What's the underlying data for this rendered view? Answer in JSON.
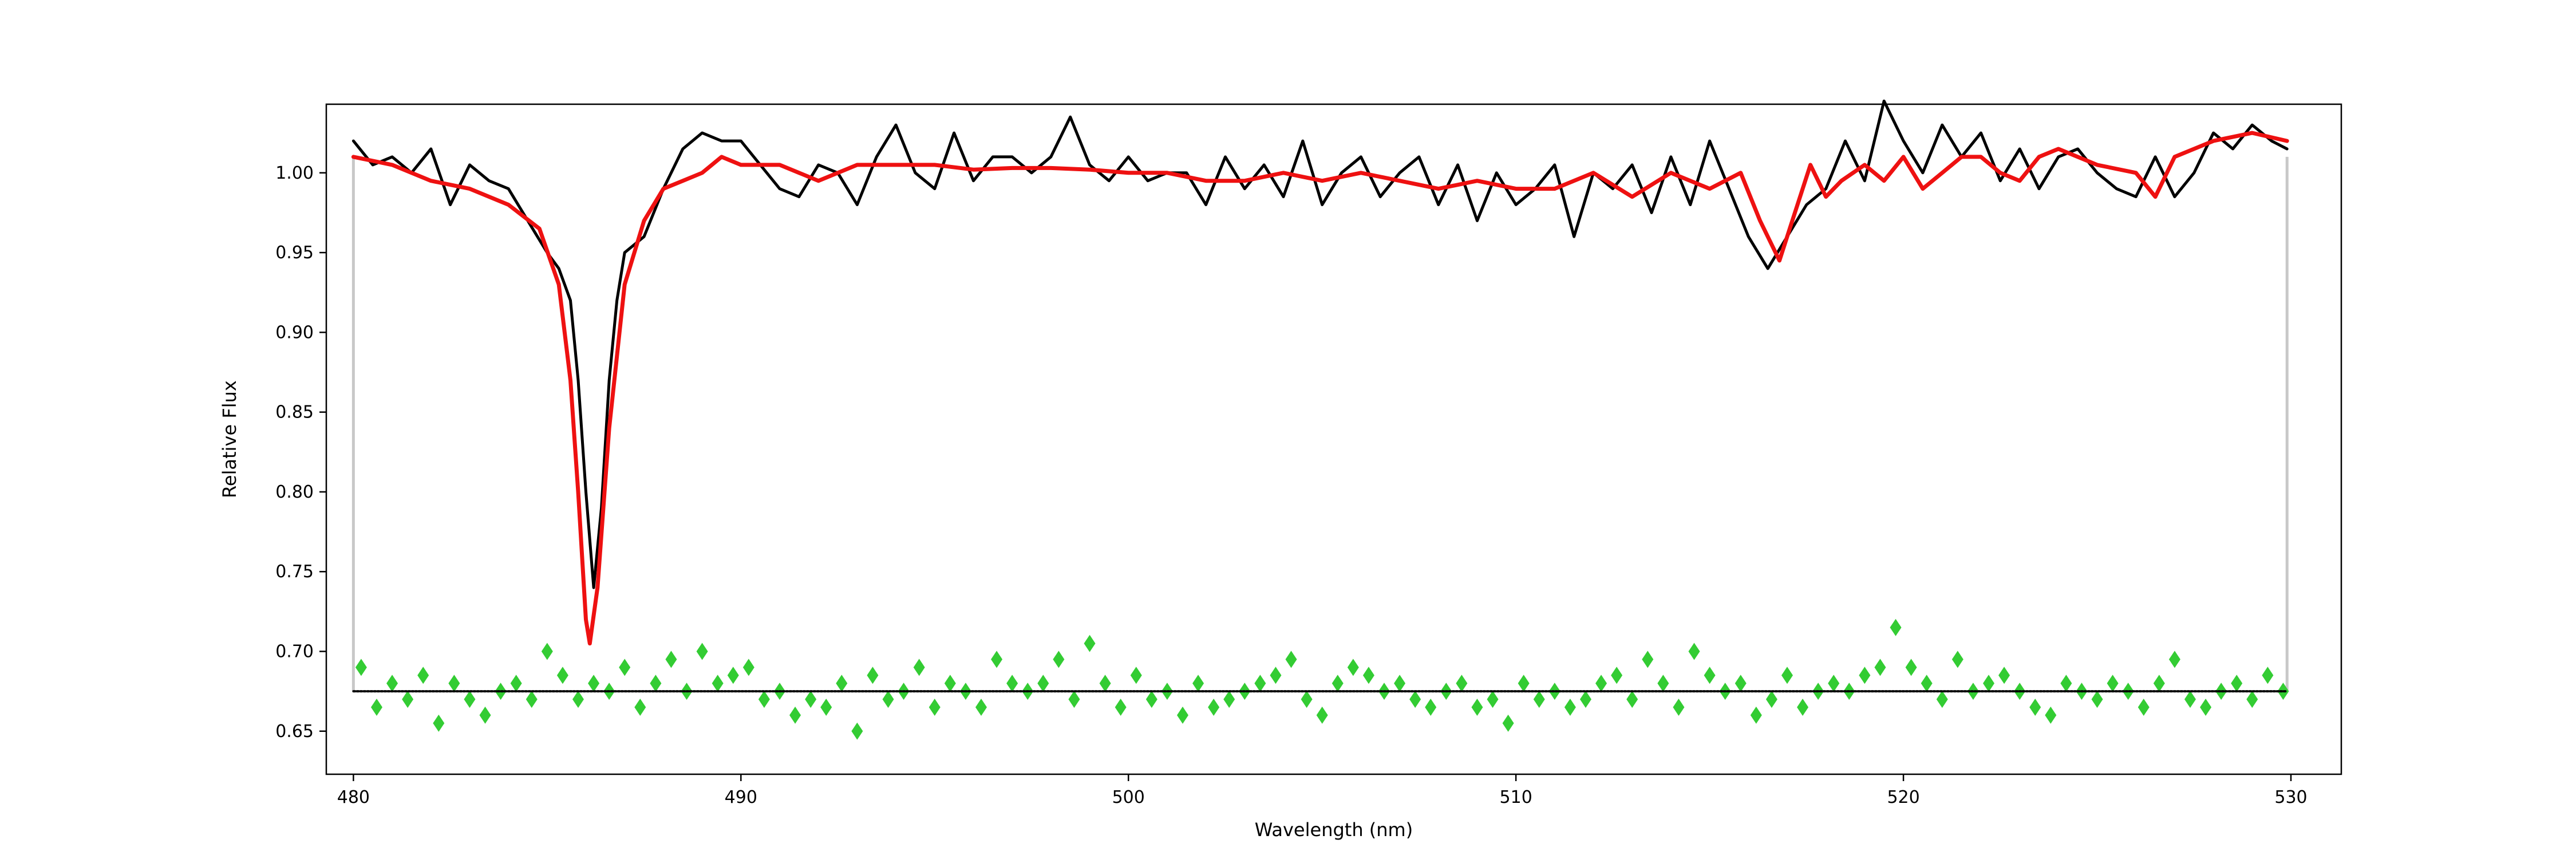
{
  "chart_data": {
    "type": "line",
    "title": "",
    "xlabel": "Wavelength (nm)",
    "ylabel": "Relative Flux",
    "xlim": [
      479.3,
      531.3
    ],
    "ylim": [
      0.623,
      1.043
    ],
    "xticks": [
      480,
      490,
      500,
      510,
      520,
      530
    ],
    "xtick_labels": [
      "480",
      "490",
      "500",
      "510",
      "520",
      "530"
    ],
    "yticks": [
      0.65,
      0.7,
      0.75,
      0.8,
      0.85,
      0.9,
      0.95,
      1.0
    ],
    "ytick_labels": [
      "0.65",
      "0.70",
      "0.75",
      "0.80",
      "0.85",
      "0.90",
      "0.95",
      "1.00"
    ],
    "grid": false,
    "legend": "none",
    "residual_offset": 0.675,
    "boundaries": {
      "x": [
        480.0,
        529.9
      ],
      "y_range": [
        0.675,
        1.01
      ],
      "color": "#c8c8c8"
    },
    "series": [
      {
        "style": "observed-line",
        "color": "#000000",
        "x": [
          480.0,
          480.5,
          481.0,
          481.5,
          482.0,
          482.5,
          483.0,
          483.5,
          484.0,
          484.5,
          485.0,
          485.3,
          485.6,
          485.8,
          486.0,
          486.2,
          486.4,
          486.6,
          486.8,
          487.0,
          487.5,
          488.0,
          488.5,
          489.0,
          489.5,
          490.0,
          490.5,
          491.0,
          491.5,
          492.0,
          492.5,
          493.0,
          493.5,
          494.0,
          494.5,
          495.0,
          495.5,
          496.0,
          496.5,
          497.0,
          497.5,
          498.0,
          498.5,
          499.0,
          499.5,
          500.0,
          500.5,
          501.0,
          501.5,
          502.0,
          502.5,
          503.0,
          503.5,
          504.0,
          504.5,
          505.0,
          505.5,
          506.0,
          506.5,
          507.0,
          507.5,
          508.0,
          508.5,
          509.0,
          509.5,
          510.0,
          510.5,
          511.0,
          511.5,
          512.0,
          512.5,
          513.0,
          513.5,
          514.0,
          514.5,
          515.0,
          515.5,
          516.0,
          516.5,
          517.0,
          517.5,
          518.0,
          518.5,
          519.0,
          519.5,
          520.0,
          520.5,
          521.0,
          521.5,
          522.0,
          522.5,
          523.0,
          523.5,
          524.0,
          524.5,
          525.0,
          525.5,
          526.0,
          526.5,
          527.0,
          527.5,
          528.0,
          528.5,
          529.0,
          529.5,
          529.9
        ],
        "y": [
          1.02,
          1.005,
          1.01,
          1.0,
          1.015,
          0.98,
          1.005,
          0.995,
          0.99,
          0.97,
          0.95,
          0.94,
          0.92,
          0.87,
          0.8,
          0.74,
          0.79,
          0.87,
          0.92,
          0.95,
          0.96,
          0.99,
          1.015,
          1.025,
          1.02,
          1.02,
          1.005,
          0.99,
          0.985,
          1.005,
          1.0,
          0.98,
          1.01,
          1.03,
          1.0,
          0.99,
          1.025,
          0.995,
          1.01,
          1.01,
          1.0,
          1.01,
          1.035,
          1.005,
          0.995,
          1.01,
          0.995,
          1.0,
          1.0,
          0.98,
          1.01,
          0.99,
          1.005,
          0.985,
          1.02,
          0.98,
          1.0,
          1.01,
          0.985,
          1.0,
          1.01,
          0.98,
          1.005,
          0.97,
          1.0,
          0.98,
          0.99,
          1.005,
          0.96,
          1.0,
          0.99,
          1.005,
          0.975,
          1.01,
          0.98,
          1.02,
          0.99,
          0.96,
          0.94,
          0.96,
          0.98,
          0.99,
          1.02,
          0.995,
          1.045,
          1.02,
          1.0,
          1.03,
          1.01,
          1.025,
          0.995,
          1.015,
          0.99,
          1.01,
          1.015,
          1.0,
          0.99,
          0.985,
          1.01,
          0.985,
          1.0,
          1.025,
          1.015,
          1.03,
          1.02,
          1.015
        ]
      },
      {
        "style": "model-line",
        "color": "#ee1111",
        "x": [
          480.0,
          481.0,
          482.0,
          483.0,
          484.0,
          484.8,
          485.3,
          485.6,
          485.8,
          486.0,
          486.1,
          486.3,
          486.6,
          487.0,
          487.5,
          488.0,
          488.5,
          489.0,
          489.5,
          490.0,
          491.0,
          492.0,
          493.0,
          494.0,
          495.0,
          496.0,
          497.0,
          498.0,
          499.0,
          500.0,
          501.0,
          502.0,
          503.0,
          504.0,
          505.0,
          506.0,
          507.0,
          508.0,
          509.0,
          510.0,
          511.0,
          512.0,
          513.0,
          514.0,
          515.0,
          515.8,
          516.3,
          516.8,
          517.2,
          517.6,
          518.0,
          518.4,
          519.0,
          519.5,
          520.0,
          520.5,
          521.0,
          521.5,
          522.0,
          522.5,
          523.0,
          523.5,
          524.0,
          525.0,
          526.0,
          526.5,
          527.0,
          528.0,
          529.0,
          529.9
        ],
        "y": [
          1.01,
          1.005,
          0.995,
          0.99,
          0.98,
          0.965,
          0.93,
          0.87,
          0.8,
          0.72,
          0.705,
          0.74,
          0.84,
          0.93,
          0.97,
          0.99,
          0.995,
          1.0,
          1.01,
          1.005,
          1.005,
          0.995,
          1.005,
          1.005,
          1.005,
          1.002,
          1.003,
          1.003,
          1.002,
          1.0,
          1.0,
          0.995,
          0.995,
          1.0,
          0.995,
          1.0,
          0.995,
          0.99,
          0.995,
          0.99,
          0.99,
          1.0,
          0.985,
          1.0,
          0.99,
          1.0,
          0.97,
          0.945,
          0.975,
          1.005,
          0.985,
          0.995,
          1.005,
          0.995,
          1.01,
          0.99,
          1.0,
          1.01,
          1.01,
          1.0,
          0.995,
          1.01,
          1.015,
          1.005,
          1.0,
          0.985,
          1.01,
          1.02,
          1.025,
          1.02
        ]
      },
      {
        "style": "residual-points",
        "color": "#33cc33",
        "x": [
          480.2,
          480.6,
          481.0,
          481.4,
          481.8,
          482.2,
          482.6,
          483.0,
          483.4,
          483.8,
          484.2,
          484.6,
          485.0,
          485.4,
          485.8,
          486.2,
          486.6,
          487.0,
          487.4,
          487.8,
          488.2,
          488.6,
          489.0,
          489.4,
          489.8,
          490.2,
          490.6,
          491.0,
          491.4,
          491.8,
          492.2,
          492.6,
          493.0,
          493.4,
          493.8,
          494.2,
          494.6,
          495.0,
          495.4,
          495.8,
          496.2,
          496.6,
          497.0,
          497.4,
          497.8,
          498.2,
          498.6,
          499.0,
          499.4,
          499.8,
          500.2,
          500.6,
          501.0,
          501.4,
          501.8,
          502.2,
          502.6,
          503.0,
          503.4,
          503.8,
          504.2,
          504.6,
          505.0,
          505.4,
          505.8,
          506.2,
          506.6,
          507.0,
          507.4,
          507.8,
          508.2,
          508.6,
          509.0,
          509.4,
          509.8,
          510.2,
          510.6,
          511.0,
          511.4,
          511.8,
          512.2,
          512.6,
          513.0,
          513.4,
          513.8,
          514.2,
          514.6,
          515.0,
          515.4,
          515.8,
          516.2,
          516.6,
          517.0,
          517.4,
          517.8,
          518.2,
          518.6,
          519.0,
          519.4,
          519.8,
          520.2,
          520.6,
          521.0,
          521.4,
          521.8,
          522.2,
          522.6,
          523.0,
          523.4,
          523.8,
          524.2,
          524.6,
          525.0,
          525.4,
          525.8,
          526.2,
          526.6,
          527.0,
          527.4,
          527.8,
          528.2,
          528.6,
          529.0,
          529.4,
          529.8
        ],
        "y": [
          0.69,
          0.665,
          0.68,
          0.67,
          0.685,
          0.655,
          0.68,
          0.67,
          0.66,
          0.675,
          0.68,
          0.67,
          0.7,
          0.685,
          0.67,
          0.68,
          0.675,
          0.69,
          0.665,
          0.68,
          0.695,
          0.675,
          0.7,
          0.68,
          0.685,
          0.69,
          0.67,
          0.675,
          0.66,
          0.67,
          0.665,
          0.68,
          0.65,
          0.685,
          0.67,
          0.675,
          0.69,
          0.665,
          0.68,
          0.675,
          0.665,
          0.695,
          0.68,
          0.675,
          0.68,
          0.695,
          0.67,
          0.705,
          0.68,
          0.665,
          0.685,
          0.67,
          0.675,
          0.66,
          0.68,
          0.665,
          0.67,
          0.675,
          0.68,
          0.685,
          0.695,
          0.67,
          0.66,
          0.68,
          0.69,
          0.685,
          0.675,
          0.68,
          0.67,
          0.665,
          0.675,
          0.68,
          0.665,
          0.67,
          0.655,
          0.68,
          0.67,
          0.675,
          0.665,
          0.67,
          0.68,
          0.685,
          0.67,
          0.695,
          0.68,
          0.665,
          0.7,
          0.685,
          0.675,
          0.68,
          0.66,
          0.67,
          0.685,
          0.665,
          0.675,
          0.68,
          0.675,
          0.685,
          0.69,
          0.715,
          0.69,
          0.68,
          0.67,
          0.695,
          0.675,
          0.68,
          0.685,
          0.675,
          0.665,
          0.66,
          0.68,
          0.675,
          0.67,
          0.68,
          0.675,
          0.665,
          0.68,
          0.695,
          0.67,
          0.665,
          0.675,
          0.68,
          0.67,
          0.685,
          0.675
        ]
      },
      {
        "style": "zero-line",
        "color": "#000000",
        "x": [
          480.0,
          529.9
        ],
        "y": [
          0.675,
          0.675
        ]
      }
    ]
  }
}
